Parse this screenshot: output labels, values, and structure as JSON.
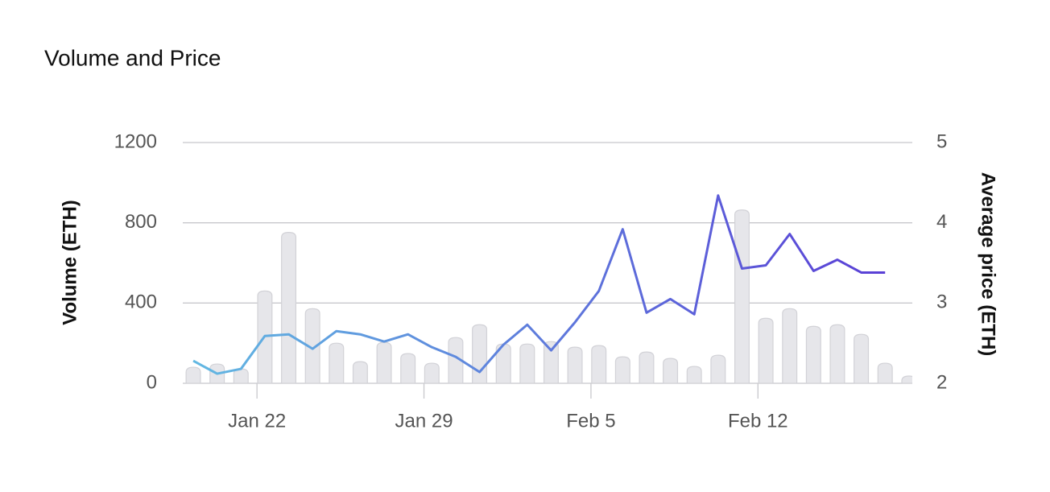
{
  "chart_data": {
    "type": "bar-line",
    "title": "Volume and Price",
    "ylabel": "Volume (ETH)",
    "y2label": "Average price (ETH)",
    "x": [
      0,
      1,
      2,
      3,
      4,
      5,
      6,
      7,
      8,
      9,
      10,
      11,
      12,
      13,
      14,
      15,
      16,
      17,
      18,
      19,
      20,
      21,
      22,
      23,
      24,
      25,
      26,
      27,
      28,
      29,
      30
    ],
    "xlim": [
      -0.44,
      30.14
    ],
    "xticks": [
      {
        "value": 2.67,
        "label": "Jan 22"
      },
      {
        "value": 9.67,
        "label": "Jan 29"
      },
      {
        "value": 16.67,
        "label": "Feb 5"
      },
      {
        "value": 23.67,
        "label": "Feb 12"
      }
    ],
    "ylim": [
      0,
      1200
    ],
    "yticks": [
      0,
      400,
      800,
      1200
    ],
    "y2lim": [
      2,
      5
    ],
    "y2ticks": [
      2,
      3,
      4,
      5
    ],
    "grid": true,
    "series": [
      {
        "name": "Volume",
        "type": "bar",
        "color": "#e6e6ea",
        "values": [
          80,
          96,
          72,
          460,
          752,
          372,
          200,
          108,
          204,
          148,
          100,
          228,
          292,
          196,
          196,
          208,
          180,
          188,
          132,
          156,
          124,
          84,
          140,
          864,
          324,
          372,
          284,
          292,
          244,
          100,
          36
        ]
      },
      {
        "name": "Average price",
        "type": "line",
        "axis": "y2",
        "color": [
          "#62b8e2",
          "#5a3fd6"
        ],
        "values": [
          2.28,
          2.12,
          2.18,
          2.59,
          2.61,
          2.43,
          2.65,
          2.61,
          2.52,
          2.61,
          2.45,
          2.33,
          2.14,
          2.48,
          2.73,
          2.41,
          2.76,
          3.15,
          3.92,
          2.88,
          3.05,
          2.86,
          4.34,
          3.43,
          3.47,
          3.86,
          3.4,
          3.54,
          3.38,
          3.38,
          null
        ]
      }
    ]
  }
}
